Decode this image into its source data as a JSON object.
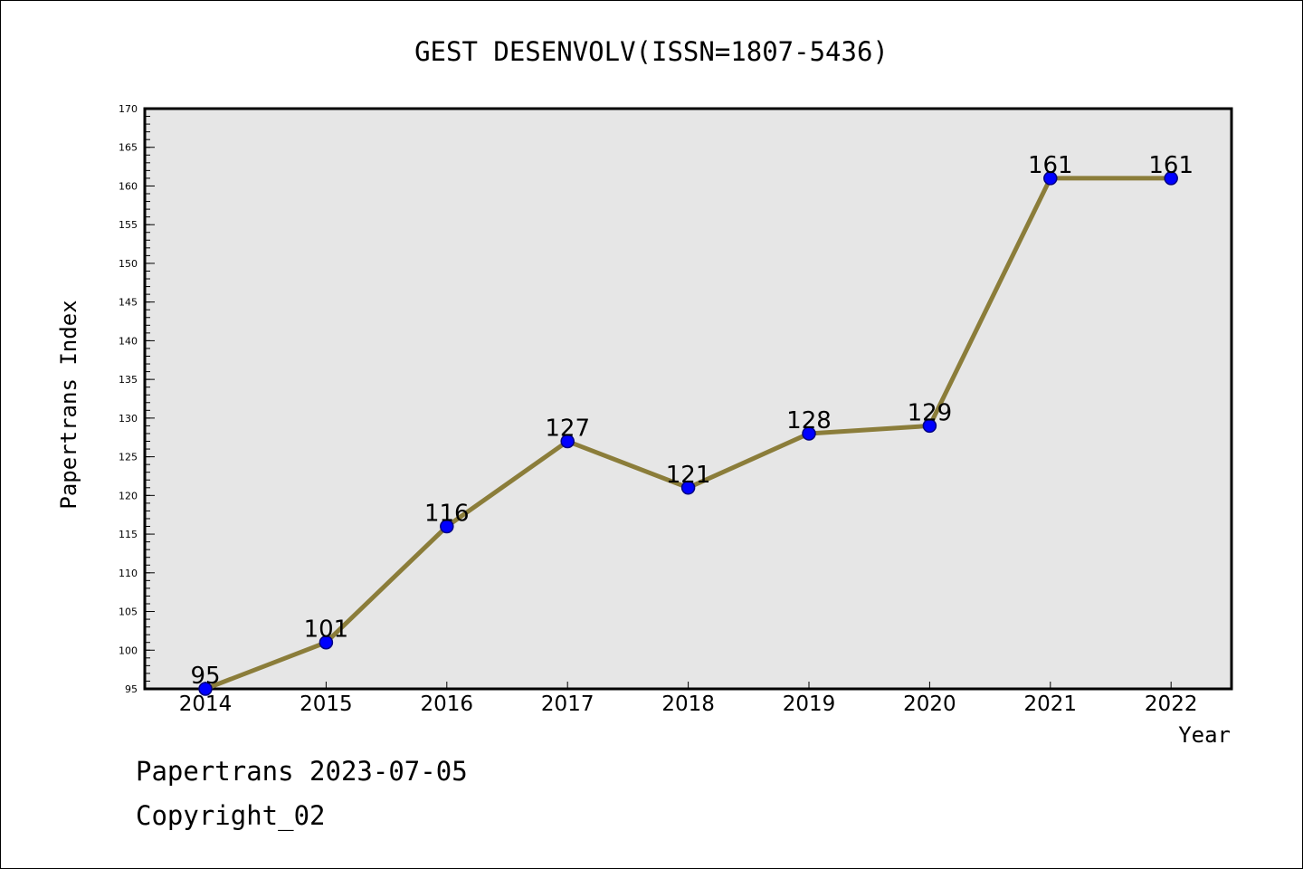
{
  "footer": {
    "date_text": "Papertrans 2023-07-05",
    "copyright_text": "Copyright_02"
  },
  "colors": {
    "line": "#8b7d3a",
    "marker_fill": "#0000ff",
    "marker_stroke": "#000080",
    "plot_background": "#e6e6e6"
  },
  "chart_data": {
    "type": "line",
    "title": "GEST DESENVOLV(ISSN=1807-5436)",
    "xlabel": "Year",
    "ylabel": "Papertrans Index",
    "x": [
      2014,
      2015,
      2016,
      2017,
      2018,
      2019,
      2020,
      2021,
      2022
    ],
    "categories": [
      "2014",
      "2015",
      "2016",
      "2017",
      "2018",
      "2019",
      "2020",
      "2021",
      "2022"
    ],
    "values": [
      95,
      101,
      116,
      127,
      121,
      128,
      129,
      161,
      161
    ],
    "data_labels": [
      "95",
      "101",
      "116",
      "127",
      "121",
      "128",
      "129",
      "161",
      "161"
    ],
    "ylim": [
      95,
      170
    ],
    "yticks": [
      "95",
      "100",
      "105",
      "110",
      "115",
      "120",
      "125",
      "130",
      "135",
      "140",
      "145",
      "150",
      "155",
      "160",
      "165",
      "170"
    ],
    "ytick_values": [
      95,
      100,
      105,
      110,
      115,
      120,
      125,
      130,
      135,
      140,
      145,
      150,
      155,
      160,
      165,
      170
    ],
    "grid": false,
    "legend": "none"
  }
}
